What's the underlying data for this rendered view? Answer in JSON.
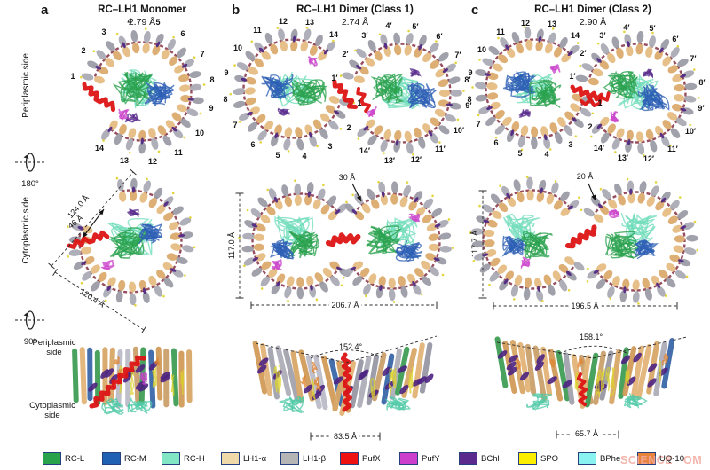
{
  "side_labels": {
    "periplasmic": "Periplasmic side",
    "cytoplasmic": "Cytoplasmic side",
    "rotation_180": "180°",
    "rotation_90": "90°"
  },
  "panels": [
    {
      "letter": "a",
      "title": "RC–LH1 Monomer",
      "resolution": "2.79 Å",
      "ring_numbers": [
        "1",
        "2",
        "3",
        "4",
        "5",
        "6",
        "7",
        "8",
        "9",
        "10",
        "11",
        "12",
        "13",
        "14"
      ],
      "measurements": {
        "diag_upper": "124.0 Å",
        "arrow": "46 Å",
        "diag_lower": "120.4 Å"
      }
    },
    {
      "letter": "b",
      "title": "RC–LH1 Dimer (Class 1)",
      "resolution": "2.74 Å",
      "ring_numbers_left": [
        "1",
        "2",
        "3",
        "4",
        "5",
        "6",
        "7",
        "8",
        "9",
        "10",
        "11",
        "12",
        "13",
        "14"
      ],
      "ring_numbers_right": [
        "1′",
        "2′",
        "3′",
        "4′",
        "5′",
        "6′",
        "7′",
        "8′",
        "9′",
        "10′",
        "11′",
        "12′",
        "13′",
        "14′"
      ],
      "measurements": {
        "gap": "30 Å",
        "height": "117.0 Å",
        "width": "206.7 Å",
        "angle": "152.4°",
        "base": "83.5 Å"
      }
    },
    {
      "letter": "c",
      "title": "RC–LH1 Dimer (Class 2)",
      "resolution": "2.90 Å",
      "ring_numbers_left": [
        "1",
        "2",
        "3",
        "4",
        "5",
        "6",
        "7",
        "8",
        "9",
        "10",
        "11",
        "12",
        "13",
        "14"
      ],
      "ring_numbers_right": [
        "1′",
        "2′",
        "3′",
        "4′",
        "5′",
        "6′",
        "7′",
        "8′",
        "9′",
        "10′",
        "11′",
        "12′",
        "13′",
        "14′"
      ],
      "measurements": {
        "gap": "20 Å",
        "height": "117.7 Å",
        "width": "196.5 Å",
        "angle": "158.1°",
        "base": "65.7 Å"
      }
    }
  ],
  "legend": [
    {
      "label": "RC-L",
      "color": "#29a24c"
    },
    {
      "label": "RC-M",
      "color": "#2161b4"
    },
    {
      "label": "RC-H",
      "color": "#82e5c4"
    },
    {
      "label": "LH1-α",
      "color": "#f0d9a8"
    },
    {
      "label": "LH1-β",
      "color": "#b5b5b5"
    },
    {
      "label": "PufX",
      "color": "#ee1111"
    },
    {
      "label": "PufY",
      "color": "#cc3ecc"
    },
    {
      "label": "BChl",
      "color": "#5a2b8c"
    },
    {
      "label": "SPO",
      "color": "#fcee00"
    },
    {
      "label": "BPhe",
      "color": "#8af2f0"
    },
    {
      "label": "UQ-10",
      "color": "#e8833c"
    }
  ],
  "watermark": {
    "left": "SCIENCE",
    "right": "OM"
  }
}
